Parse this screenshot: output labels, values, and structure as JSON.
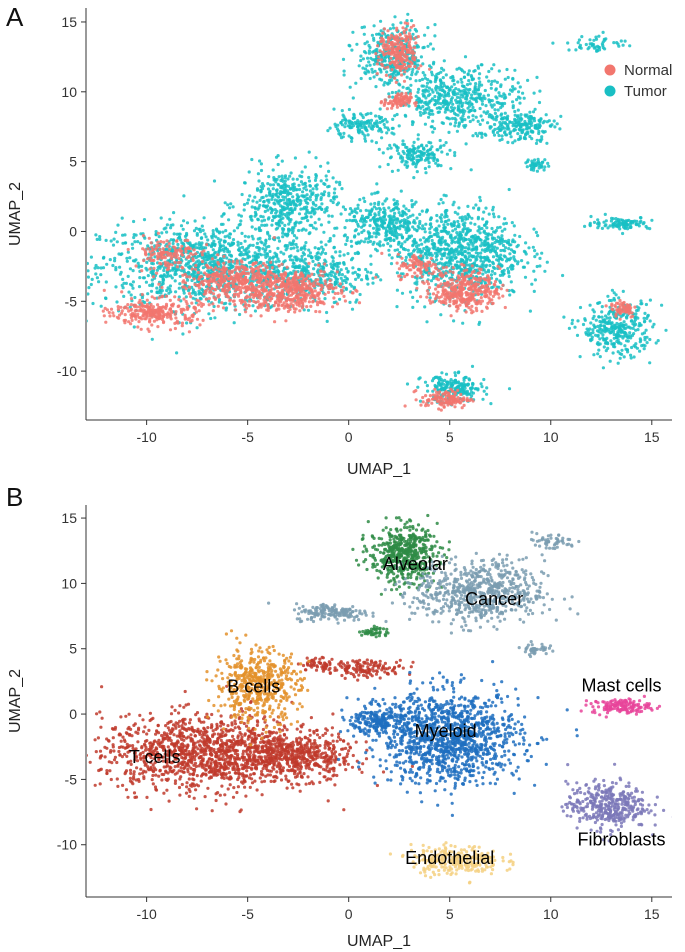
{
  "panels": {
    "a": {
      "letter": "A"
    },
    "b": {
      "letter": "B"
    }
  },
  "chart_data": [
    {
      "type": "scatter",
      "panel": "A",
      "xlabel": "UMAP_1",
      "ylabel": "UMAP_2",
      "xlim": [
        -13,
        16
      ],
      "ylim": [
        -13.5,
        16
      ],
      "x_ticks": [
        -10,
        -5,
        0,
        5,
        10,
        15
      ],
      "y_ticks": [
        -10,
        -5,
        0,
        5,
        10,
        15
      ],
      "x_tick_labels": [
        "-10",
        "-5",
        "0",
        "5",
        "10",
        "15"
      ],
      "y_tick_labels": [
        "-10",
        "-5",
        "0",
        "5",
        "10",
        "15"
      ],
      "grid": false,
      "legend_position": "top-right",
      "series": [
        {
          "name": "Tumor",
          "color": "#19BFC4",
          "regions": [
            {
              "cx": -7,
              "cy": -2.5,
              "rx": 4.8,
              "ry": 2.8,
              "n": 1100
            },
            {
              "cx": -3,
              "cy": 2,
              "rx": 2.2,
              "ry": 2.3,
              "n": 450
            },
            {
              "cx": -1.5,
              "cy": -3,
              "rx": 2.5,
              "ry": 2.0,
              "n": 300
            },
            {
              "cx": 5.5,
              "cy": -1.5,
              "rx": 2.8,
              "ry": 3.0,
              "n": 900
            },
            {
              "cx": 1.8,
              "cy": 0.5,
              "rx": 1.8,
              "ry": 1.6,
              "n": 300
            },
            {
              "cx": 2.2,
              "cy": 12.5,
              "rx": 1.6,
              "ry": 2.0,
              "n": 350
            },
            {
              "cx": 5.5,
              "cy": 9.5,
              "rx": 2.8,
              "ry": 2.0,
              "n": 500
            },
            {
              "cx": 8.5,
              "cy": 7.5,
              "rx": 1.5,
              "ry": 1.0,
              "n": 180
            },
            {
              "cx": 0.5,
              "cy": 7.5,
              "rx": 1.5,
              "ry": 0.8,
              "n": 140
            },
            {
              "cx": 3.5,
              "cy": 5.5,
              "rx": 1.5,
              "ry": 0.9,
              "n": 150
            },
            {
              "cx": 13.5,
              "cy": 0.6,
              "rx": 1.3,
              "ry": 0.4,
              "n": 100
            },
            {
              "cx": 13.3,
              "cy": -7,
              "rx": 1.6,
              "ry": 1.8,
              "n": 330
            },
            {
              "cx": 5.2,
              "cy": -11.3,
              "rx": 1.4,
              "ry": 0.9,
              "n": 200
            },
            {
              "cx": 9.3,
              "cy": 4.8,
              "rx": 0.5,
              "ry": 0.4,
              "n": 40
            },
            {
              "cx": 12.3,
              "cy": 13.4,
              "rx": 1.3,
              "ry": 0.6,
              "n": 50
            }
          ]
        },
        {
          "name": "Normal",
          "color": "#F2766E",
          "regions": [
            {
              "cx": -3.2,
              "cy": -4.2,
              "rx": 2.5,
              "ry": 1.4,
              "n": 500
            },
            {
              "cx": -9.5,
              "cy": -5.8,
              "rx": 2.0,
              "ry": 0.9,
              "n": 260
            },
            {
              "cx": -6,
              "cy": -3.5,
              "rx": 2.2,
              "ry": 1.3,
              "n": 300
            },
            {
              "cx": 5.8,
              "cy": -4.2,
              "rx": 1.5,
              "ry": 1.3,
              "n": 350
            },
            {
              "cx": 2.5,
              "cy": 12.8,
              "rx": 0.9,
              "ry": 1.6,
              "n": 220
            },
            {
              "cx": 2.4,
              "cy": 9.3,
              "rx": 0.6,
              "ry": 0.5,
              "n": 80
            },
            {
              "cx": 4.8,
              "cy": -12,
              "rx": 1.1,
              "ry": 0.6,
              "n": 120
            },
            {
              "cx": 13.6,
              "cy": -5.5,
              "rx": 0.6,
              "ry": 0.6,
              "n": 60
            },
            {
              "cx": 3.5,
              "cy": -2.5,
              "rx": 1.0,
              "ry": 0.8,
              "n": 90
            },
            {
              "cx": -9,
              "cy": -1.5,
              "rx": 1.5,
              "ry": 1.0,
              "n": 120
            }
          ]
        }
      ]
    },
    {
      "type": "scatter",
      "panel": "B",
      "xlabel": "UMAP_1",
      "ylabel": "UMAP_2",
      "xlim": [
        -13,
        16
      ],
      "ylim": [
        -14,
        16
      ],
      "x_ticks": [
        -10,
        -5,
        0,
        5,
        10,
        15
      ],
      "y_ticks": [
        -10,
        -5,
        0,
        5,
        10,
        15
      ],
      "x_tick_labels": [
        "-10",
        "-5",
        "0",
        "5",
        "10",
        "15"
      ],
      "y_tick_labels": [
        "-10",
        "-5",
        "0",
        "5",
        "10",
        "15"
      ],
      "grid": false,
      "series": [
        {
          "name": "T cells",
          "color": "#C0392B",
          "label_at": [
            -9.6,
            -3.3
          ],
          "regions": [
            {
              "cx": -7,
              "cy": -3,
              "rx": 4.8,
              "ry": 2.6,
              "n": 1300
            },
            {
              "cx": -2.5,
              "cy": -3.2,
              "rx": 2.4,
              "ry": 1.6,
              "n": 400
            },
            {
              "cx": 1,
              "cy": 3.5,
              "rx": 1.6,
              "ry": 0.6,
              "n": 120
            },
            {
              "cx": -1.3,
              "cy": 3.8,
              "rx": 1.0,
              "ry": 0.5,
              "n": 60
            }
          ]
        },
        {
          "name": "B cells",
          "color": "#E3912A",
          "label_at": [
            -4.7,
            2.1
          ],
          "regions": [
            {
              "cx": -4.5,
              "cy": 2.2,
              "rx": 1.9,
              "ry": 2.5,
              "n": 500
            }
          ]
        },
        {
          "name": "Myeloid",
          "color": "#1F6FBF",
          "label_at": [
            4.8,
            -1.3
          ],
          "regions": [
            {
              "cx": 5,
              "cy": -1.8,
              "rx": 3.2,
              "ry": 3.2,
              "n": 1200
            },
            {
              "cx": 1.6,
              "cy": -0.5,
              "rx": 1.3,
              "ry": 1.0,
              "n": 200
            }
          ]
        },
        {
          "name": "Alveolar",
          "color": "#2E8B45",
          "label_at": [
            3.3,
            11.5
          ],
          "regions": [
            {
              "cx": 2.7,
              "cy": 12.2,
              "rx": 1.5,
              "ry": 2.0,
              "n": 500
            },
            {
              "cx": 1.3,
              "cy": 6.3,
              "rx": 0.6,
              "ry": 0.4,
              "n": 40
            }
          ]
        },
        {
          "name": "Cancer",
          "color": "#7A9CB0",
          "label_at": [
            7.2,
            8.8
          ],
          "regions": [
            {
              "cx": 6.5,
              "cy": 9.3,
              "rx": 2.9,
              "ry": 2.2,
              "n": 650
            },
            {
              "cx": -0.8,
              "cy": 7.8,
              "rx": 1.7,
              "ry": 0.6,
              "n": 160
            },
            {
              "cx": 9.2,
              "cy": 5,
              "rx": 0.6,
              "ry": 0.4,
              "n": 40
            },
            {
              "cx": 10,
              "cy": 13.2,
              "rx": 1.2,
              "ry": 0.6,
              "n": 50
            }
          ]
        },
        {
          "name": "Mast cells",
          "color": "#E8449A",
          "label_at": [
            13.5,
            2.2
          ],
          "regions": [
            {
              "cx": 13.5,
              "cy": 0.6,
              "rx": 1.3,
              "ry": 0.5,
              "n": 140
            }
          ]
        },
        {
          "name": "Fibroblasts",
          "color": "#7B78B8",
          "label_at": [
            13.5,
            -9.6
          ],
          "regions": [
            {
              "cx": 12.8,
              "cy": -7,
              "rx": 1.8,
              "ry": 1.6,
              "n": 380
            }
          ]
        },
        {
          "name": "Endothelial",
          "color": "#F5D080",
          "label_at": [
            5,
            -11
          ],
          "regions": [
            {
              "cx": 5.3,
              "cy": -11.2,
              "rx": 2.0,
              "ry": 1.0,
              "n": 260
            }
          ]
        }
      ]
    }
  ]
}
